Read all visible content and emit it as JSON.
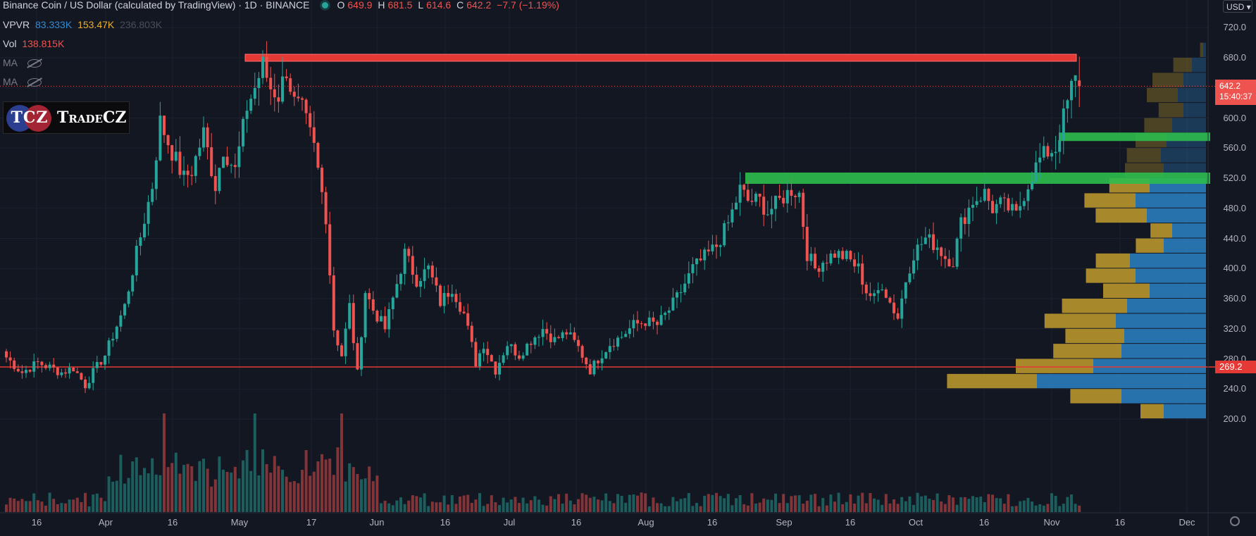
{
  "header": {
    "title": "Binance Coin / US Dollar (calculated by TradingView) · 1D · BINANCE",
    "ohlc": {
      "o_label": "O",
      "o": "649.9",
      "h_label": "H",
      "h": "681.5",
      "l_label": "L",
      "l": "614.6",
      "c_label": "C",
      "c": "642.2",
      "chg": "−7.7 (−1.19%)"
    },
    "vpvr_label": "VPVR",
    "vpvr_v1": "83.333K",
    "vpvr_v2": "153.47K",
    "vpvr_v3": "236.803K",
    "vol_label": "Vol",
    "vol_value": "138.815K",
    "ma1_label": "MA",
    "ma2_label": "MA"
  },
  "logo": {
    "badge": "TCZ",
    "text": "TradeCZ"
  },
  "currency_button": "USD",
  "current_price": {
    "price": "642.2",
    "countdown": "15:40:37"
  },
  "horizontal_line_label": "269.2",
  "colors": {
    "up": "#26a69a",
    "down": "#ef5350",
    "background": "#131722",
    "resistance": "#e53935",
    "support": "#2ebd4e",
    "vp_up": "#2a7bbd",
    "vp_down": "#b8962c"
  },
  "chart_data": {
    "type": "candlestick",
    "symbol": "BNB/USD",
    "timeframe": "1D",
    "price_axis": {
      "ylim": [
        170,
        740
      ],
      "ticks": [
        "720.0",
        "680.0",
        "640.0",
        "600.0",
        "560.0",
        "520.0",
        "480.0",
        "440.0",
        "400.0",
        "360.0",
        "320.0",
        "280.0",
        "240.0",
        "200.0"
      ]
    },
    "time_axis": {
      "ticks": [
        "16",
        "Apr",
        "16",
        "May",
        "17",
        "Jun",
        "16",
        "Jul",
        "16",
        "Aug",
        "16",
        "Sep",
        "16",
        "Oct",
        "16",
        "Nov",
        "16",
        "Dec"
      ]
    },
    "anchors": [
      {
        "d": 0,
        "p": 282
      },
      {
        "d": 4,
        "p": 262
      },
      {
        "d": 8,
        "p": 275
      },
      {
        "d": 14,
        "p": 262
      },
      {
        "d": 17,
        "p": 268
      },
      {
        "d": 20,
        "p": 245
      },
      {
        "d": 22,
        "p": 262
      },
      {
        "d": 25,
        "p": 285
      },
      {
        "d": 30,
        "p": 350
      },
      {
        "d": 33,
        "p": 420
      },
      {
        "d": 37,
        "p": 510
      },
      {
        "d": 39,
        "p": 595
      },
      {
        "d": 42,
        "p": 555
      },
      {
        "d": 45,
        "p": 520
      },
      {
        "d": 47,
        "p": 530
      },
      {
        "d": 50,
        "p": 580
      },
      {
        "d": 53,
        "p": 510
      },
      {
        "d": 55,
        "p": 560
      },
      {
        "d": 58,
        "p": 530
      },
      {
        "d": 61,
        "p": 615
      },
      {
        "d": 63,
        "p": 640
      },
      {
        "d": 65,
        "p": 670
      },
      {
        "d": 67,
        "p": 640
      },
      {
        "d": 69,
        "p": 630
      },
      {
        "d": 71,
        "p": 665
      },
      {
        "d": 73,
        "p": 620
      },
      {
        "d": 75,
        "p": 610
      },
      {
        "d": 78,
        "p": 560
      },
      {
        "d": 81,
        "p": 470
      },
      {
        "d": 83,
        "p": 320
      },
      {
        "d": 85,
        "p": 285
      },
      {
        "d": 87,
        "p": 350
      },
      {
        "d": 89,
        "p": 260
      },
      {
        "d": 91,
        "p": 370
      },
      {
        "d": 93,
        "p": 345
      },
      {
        "d": 96,
        "p": 320
      },
      {
        "d": 99,
        "p": 380
      },
      {
        "d": 101,
        "p": 420
      },
      {
        "d": 104,
        "p": 385
      },
      {
        "d": 107,
        "p": 400
      },
      {
        "d": 110,
        "p": 355
      },
      {
        "d": 113,
        "p": 375
      },
      {
        "d": 116,
        "p": 340
      },
      {
        "d": 119,
        "p": 275
      },
      {
        "d": 121,
        "p": 300
      },
      {
        "d": 124,
        "p": 265
      },
      {
        "d": 127,
        "p": 300
      },
      {
        "d": 130,
        "p": 285
      },
      {
        "d": 133,
        "p": 305
      },
      {
        "d": 136,
        "p": 320
      },
      {
        "d": 139,
        "p": 305
      },
      {
        "d": 142,
        "p": 315
      },
      {
        "d": 145,
        "p": 295
      },
      {
        "d": 148,
        "p": 265
      },
      {
        "d": 150,
        "p": 280
      },
      {
        "d": 153,
        "p": 300
      },
      {
        "d": 156,
        "p": 310
      },
      {
        "d": 159,
        "p": 325
      },
      {
        "d": 162,
        "p": 330
      },
      {
        "d": 165,
        "p": 325
      },
      {
        "d": 168,
        "p": 345
      },
      {
        "d": 171,
        "p": 370
      },
      {
        "d": 174,
        "p": 400
      },
      {
        "d": 177,
        "p": 415
      },
      {
        "d": 180,
        "p": 430
      },
      {
        "d": 183,
        "p": 460
      },
      {
        "d": 186,
        "p": 505
      },
      {
        "d": 188,
        "p": 490
      },
      {
        "d": 191,
        "p": 490
      },
      {
        "d": 193,
        "p": 475
      },
      {
        "d": 196,
        "p": 490
      },
      {
        "d": 199,
        "p": 505
      },
      {
        "d": 201,
        "p": 500
      },
      {
        "d": 203,
        "p": 420
      },
      {
        "d": 205,
        "p": 400
      },
      {
        "d": 207,
        "p": 410
      },
      {
        "d": 210,
        "p": 420
      },
      {
        "d": 213,
        "p": 415
      },
      {
        "d": 216,
        "p": 400
      },
      {
        "d": 218,
        "p": 370
      },
      {
        "d": 220,
        "p": 360
      },
      {
        "d": 222,
        "p": 380
      },
      {
        "d": 224,
        "p": 355
      },
      {
        "d": 226,
        "p": 335
      },
      {
        "d": 228,
        "p": 385
      },
      {
        "d": 230,
        "p": 420
      },
      {
        "d": 233,
        "p": 440
      },
      {
        "d": 236,
        "p": 430
      },
      {
        "d": 238,
        "p": 415
      },
      {
        "d": 240,
        "p": 410
      },
      {
        "d": 242,
        "p": 460
      },
      {
        "d": 245,
        "p": 490
      },
      {
        "d": 248,
        "p": 500
      },
      {
        "d": 250,
        "p": 480
      },
      {
        "d": 252,
        "p": 485
      },
      {
        "d": 254,
        "p": 480
      },
      {
        "d": 256,
        "p": 470
      },
      {
        "d": 258,
        "p": 500
      },
      {
        "d": 260,
        "p": 525
      },
      {
        "d": 262,
        "p": 545
      },
      {
        "d": 264,
        "p": 555
      },
      {
        "d": 266,
        "p": 560
      },
      {
        "d": 268,
        "p": 600
      },
      {
        "d": 270,
        "p": 640
      },
      {
        "d": 271,
        "p": 650
      },
      {
        "d": 272,
        "p": 642.2
      }
    ],
    "last_candle": {
      "open": 649.9,
      "high": 681.5,
      "low": 614.6,
      "close": 642.2,
      "change": -7.7,
      "change_pct": -1.19
    },
    "levels": [
      {
        "name": "resistance",
        "price": 680,
        "color": "#e53935"
      },
      {
        "name": "support-upper",
        "price": 575,
        "color": "#2ebd4e"
      },
      {
        "name": "support-lower",
        "price": 520,
        "color": "#2ebd4e"
      },
      {
        "name": "horizontal-line",
        "price": 269.2,
        "color": "#e53935"
      }
    ],
    "volume_profile": [
      {
        "p": 690,
        "up": 0.02,
        "down": 0.01
      },
      {
        "p": 670,
        "up": 0.12,
        "down": 0.05
      },
      {
        "p": 650,
        "up": 0.2,
        "down": 0.08
      },
      {
        "p": 630,
        "up": 0.2,
        "down": 0.1
      },
      {
        "p": 610,
        "up": 0.16,
        "down": 0.08
      },
      {
        "p": 590,
        "up": 0.18,
        "down": 0.12
      },
      {
        "p": 570,
        "up": 0.2,
        "down": 0.14
      },
      {
        "p": 550,
        "up": 0.22,
        "down": 0.16
      },
      {
        "p": 530,
        "up": 0.25,
        "down": 0.15
      },
      {
        "p": 510,
        "up": 0.26,
        "down": 0.2
      },
      {
        "p": 490,
        "up": 0.33,
        "down": 0.25
      },
      {
        "p": 470,
        "up": 0.33,
        "down": 0.21
      },
      {
        "p": 450,
        "up": 0.14,
        "down": 0.12
      },
      {
        "p": 430,
        "up": 0.18,
        "down": 0.15
      },
      {
        "p": 410,
        "up": 0.22,
        "down": 0.27
      },
      {
        "p": 390,
        "up": 0.32,
        "down": 0.25
      },
      {
        "p": 370,
        "up": 0.3,
        "down": 0.2
      },
      {
        "p": 350,
        "up": 0.42,
        "down": 0.28
      },
      {
        "p": 330,
        "up": 0.46,
        "down": 0.32
      },
      {
        "p": 310,
        "up": 0.38,
        "down": 0.29
      },
      {
        "p": 290,
        "up": 0.44,
        "down": 0.3
      },
      {
        "p": 270,
        "up": 0.5,
        "down": 0.4
      },
      {
        "p": 250,
        "up": 0.58,
        "down": 0.6
      },
      {
        "p": 230,
        "up": 0.33,
        "down": 0.3
      },
      {
        "p": 210,
        "up": 0.15,
        "down": 0.15
      }
    ]
  }
}
